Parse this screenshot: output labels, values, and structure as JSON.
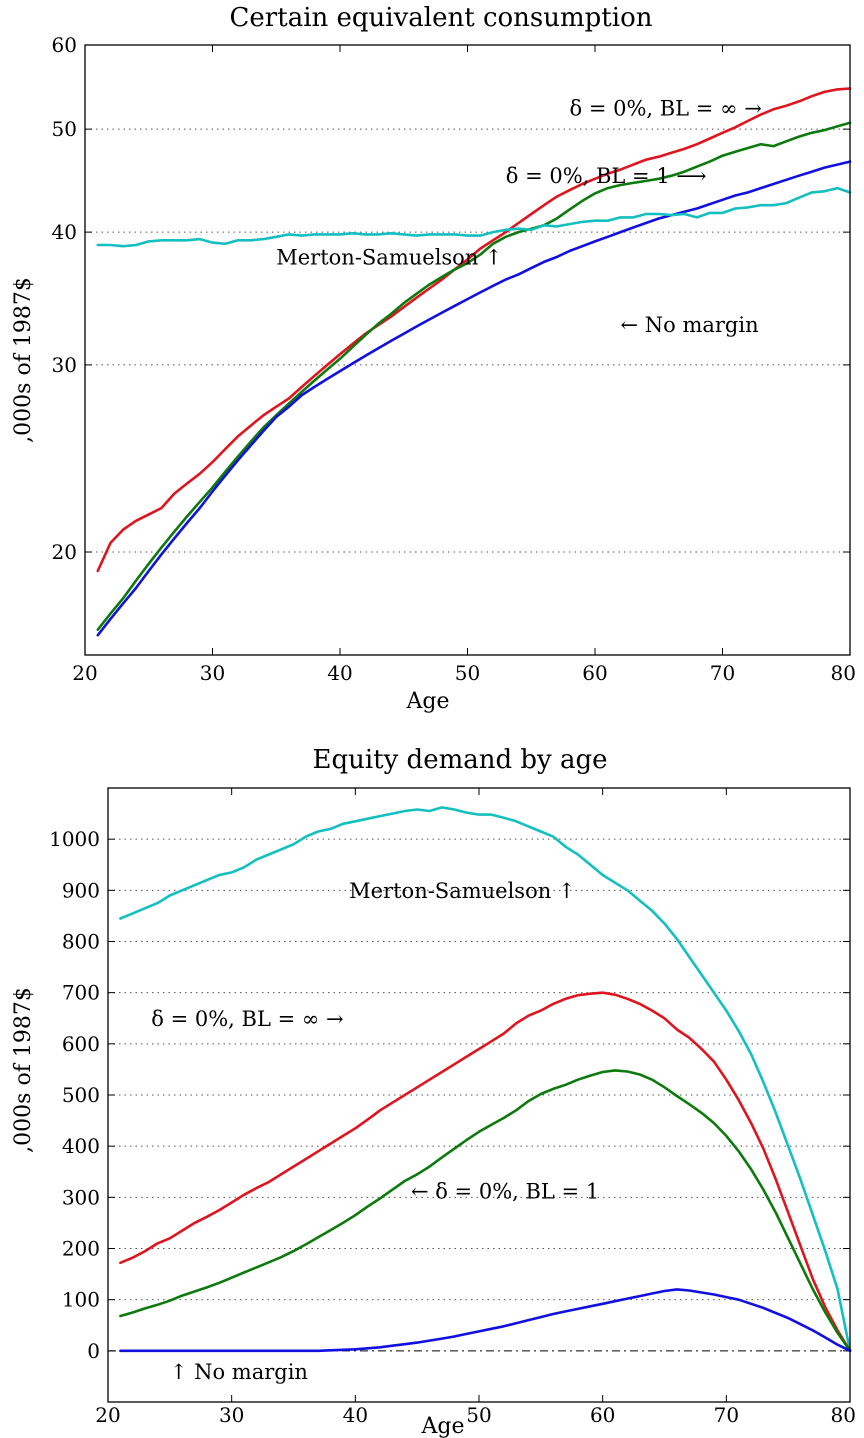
{
  "chart_data": [
    {
      "type": "line",
      "title": "Certain equivalent consumption",
      "xlabel": "Age",
      "ylabel": ",000s of 1987$",
      "xlim": [
        20,
        80
      ],
      "ylim": [
        16,
        60
      ],
      "yscale": "log",
      "xticks": [
        20,
        30,
        40,
        50,
        60,
        70,
        80
      ],
      "yticks": [
        20,
        30,
        40,
        50,
        60
      ],
      "grid_y": [
        20,
        30,
        40,
        50
      ],
      "annotations": [
        {
          "text": "δ = 0%, BL = ∞ →",
          "x": 58,
          "y": 51.5
        },
        {
          "text": "δ = 0%, BL = 1 ⟶",
          "x": 53,
          "y": 44.5
        },
        {
          "text": "Merton-Samuelson ↑",
          "x": 35,
          "y": 37.3
        },
        {
          "text": "← No margin",
          "x": 62,
          "y": 32.2
        }
      ],
      "series": [
        {
          "color": "#e0141e",
          "x": [
            21,
            22,
            23,
            24,
            25,
            26,
            27,
            28,
            29,
            30,
            31,
            32,
            33,
            34,
            35,
            36,
            37,
            38,
            39,
            40,
            41,
            42,
            43,
            44,
            45,
            46,
            47,
            48,
            49,
            50,
            51,
            52,
            53,
            54,
            55,
            56,
            57,
            58,
            59,
            60,
            61,
            62,
            63,
            64,
            65,
            66,
            67,
            68,
            69,
            70,
            71,
            72,
            73,
            74,
            75,
            76,
            77,
            78,
            79,
            80
          ],
          "values": [
            19.2,
            20.4,
            21.0,
            21.4,
            21.7,
            22.0,
            22.7,
            23.2,
            23.7,
            24.3,
            25.0,
            25.7,
            26.3,
            26.9,
            27.4,
            27.9,
            28.6,
            29.3,
            30.0,
            30.7,
            31.4,
            32.1,
            32.7,
            33.3,
            34.0,
            34.7,
            35.4,
            36.1,
            36.9,
            37.7,
            38.6,
            39.3,
            40.0,
            40.8,
            41.6,
            42.4,
            43.2,
            43.8,
            44.4,
            44.9,
            45.4,
            45.8,
            46.3,
            46.8,
            47.1,
            47.5,
            47.9,
            48.4,
            49.0,
            49.6,
            50.2,
            50.9,
            51.6,
            52.2,
            52.6,
            53.1,
            53.7,
            54.2,
            54.5,
            54.6
          ]
        },
        {
          "color": "#0d7a0d",
          "x": [
            21,
            22,
            23,
            24,
            25,
            26,
            27,
            28,
            29,
            30,
            31,
            32,
            33,
            34,
            35,
            36,
            37,
            38,
            39,
            40,
            41,
            42,
            43,
            44,
            45,
            46,
            47,
            48,
            49,
            50,
            51,
            52,
            53,
            54,
            55,
            56,
            57,
            58,
            59,
            60,
            61,
            62,
            63,
            64,
            65,
            66,
            67,
            68,
            69,
            70,
            71,
            72,
            73,
            74,
            75,
            76,
            77,
            78,
            79,
            80
          ],
          "values": [
            16.9,
            17.5,
            18.1,
            18.8,
            19.5,
            20.2,
            20.9,
            21.6,
            22.3,
            23.0,
            23.8,
            24.6,
            25.4,
            26.2,
            26.9,
            27.6,
            28.3,
            29.0,
            29.7,
            30.4,
            31.2,
            32.0,
            32.8,
            33.5,
            34.3,
            35.0,
            35.7,
            36.3,
            36.9,
            37.4,
            38.1,
            39.0,
            39.6,
            40.0,
            40.3,
            40.6,
            41.2,
            42.0,
            42.8,
            43.5,
            44.0,
            44.3,
            44.5,
            44.7,
            44.9,
            45.2,
            45.6,
            46.1,
            46.6,
            47.2,
            47.6,
            48.0,
            48.4,
            48.2,
            48.7,
            49.2,
            49.6,
            49.9,
            50.3,
            50.7
          ]
        },
        {
          "color": "#1010e0",
          "x": [
            21,
            22,
            23,
            24,
            25,
            26,
            27,
            28,
            29,
            30,
            31,
            32,
            33,
            34,
            35,
            36,
            37,
            38,
            39,
            40,
            41,
            42,
            43,
            44,
            45,
            46,
            47,
            48,
            49,
            50,
            51,
            52,
            53,
            54,
            55,
            56,
            57,
            58,
            59,
            60,
            61,
            62,
            63,
            64,
            65,
            66,
            67,
            68,
            69,
            70,
            71,
            72,
            73,
            74,
            75,
            76,
            77,
            78,
            79,
            80
          ],
          "values": [
            16.7,
            17.3,
            17.9,
            18.5,
            19.2,
            19.9,
            20.6,
            21.3,
            22.0,
            22.8,
            23.6,
            24.4,
            25.2,
            26.0,
            26.8,
            27.4,
            28.1,
            28.6,
            29.1,
            29.6,
            30.1,
            30.6,
            31.1,
            31.6,
            32.1,
            32.6,
            33.1,
            33.6,
            34.1,
            34.6,
            35.1,
            35.6,
            36.1,
            36.5,
            37.0,
            37.5,
            37.9,
            38.4,
            38.8,
            39.2,
            39.6,
            40.0,
            40.4,
            40.8,
            41.2,
            41.5,
            41.8,
            42.1,
            42.5,
            42.9,
            43.3,
            43.6,
            44.0,
            44.4,
            44.8,
            45.2,
            45.6,
            46.0,
            46.3,
            46.6
          ]
        },
        {
          "color": "#13bfbf",
          "x": [
            21,
            22,
            23,
            24,
            25,
            26,
            27,
            28,
            29,
            30,
            31,
            32,
            33,
            34,
            35,
            36,
            37,
            38,
            39,
            40,
            41,
            42,
            43,
            44,
            45,
            46,
            47,
            48,
            49,
            50,
            51,
            52,
            53,
            54,
            55,
            56,
            57,
            58,
            59,
            60,
            61,
            62,
            63,
            64,
            65,
            66,
            67,
            68,
            69,
            70,
            71,
            72,
            73,
            74,
            75,
            76,
            77,
            78,
            79,
            80
          ],
          "values": [
            38.9,
            38.9,
            38.8,
            38.9,
            39.2,
            39.3,
            39.3,
            39.3,
            39.4,
            39.1,
            39.0,
            39.3,
            39.3,
            39.4,
            39.6,
            39.8,
            39.7,
            39.8,
            39.8,
            39.8,
            39.9,
            39.8,
            39.8,
            39.9,
            39.8,
            39.7,
            39.8,
            39.8,
            39.8,
            39.7,
            39.7,
            40.0,
            40.2,
            40.3,
            40.2,
            40.6,
            40.5,
            40.7,
            40.9,
            41.0,
            41.0,
            41.3,
            41.3,
            41.6,
            41.6,
            41.5,
            41.6,
            41.3,
            41.7,
            41.7,
            42.1,
            42.2,
            42.4,
            42.4,
            42.6,
            43.1,
            43.6,
            43.7,
            44.0,
            43.6
          ]
        }
      ]
    },
    {
      "type": "line",
      "title": "Equity demand by age",
      "xlabel": "Age",
      "ylabel": ",000s of 1987$",
      "xlim": [
        20,
        80
      ],
      "ylim": [
        -100,
        1100
      ],
      "yscale": "linear",
      "xticks": [
        20,
        30,
        40,
        50,
        60,
        70,
        80
      ],
      "yticks": [
        0,
        100,
        200,
        300,
        400,
        500,
        600,
        700,
        800,
        900,
        1000
      ],
      "grid_y": [
        100,
        200,
        300,
        400,
        500,
        600,
        700,
        800,
        900,
        1000
      ],
      "zero_line": true,
      "annotations": [
        {
          "text": "Merton-Samuelson ↑",
          "x": 39.5,
          "y": 885
        },
        {
          "text": "δ = 0%, BL = ∞ →",
          "x": 23.5,
          "y": 635
        },
        {
          "text": "← δ = 0%, BL = 1",
          "x": 44.5,
          "y": 298
        },
        {
          "text": "↑ No margin",
          "x": 25,
          "y": -55
        }
      ],
      "series": [
        {
          "color": "#13bfbf",
          "x": [
            21,
            22,
            23,
            24,
            25,
            26,
            27,
            28,
            29,
            30,
            31,
            32,
            33,
            34,
            35,
            36,
            37,
            38,
            39,
            40,
            41,
            42,
            43,
            44,
            45,
            46,
            47,
            48,
            49,
            50,
            51,
            52,
            53,
            54,
            55,
            56,
            57,
            58,
            59,
            60,
            61,
            62,
            63,
            64,
            65,
            66,
            67,
            68,
            69,
            70,
            71,
            72,
            73,
            74,
            75,
            76,
            77,
            78,
            79,
            80
          ],
          "values": [
            845,
            855,
            865,
            875,
            890,
            900,
            910,
            920,
            930,
            935,
            945,
            960,
            970,
            980,
            990,
            1005,
            1015,
            1020,
            1030,
            1035,
            1040,
            1045,
            1050,
            1055,
            1058,
            1055,
            1062,
            1058,
            1052,
            1048,
            1048,
            1042,
            1035,
            1025,
            1015,
            1005,
            985,
            970,
            950,
            930,
            915,
            900,
            880,
            860,
            835,
            805,
            770,
            735,
            700,
            665,
            625,
            580,
            525,
            465,
            400,
            335,
            265,
            195,
            120,
            0
          ]
        },
        {
          "color": "#e0141e",
          "x": [
            21,
            22,
            23,
            24,
            25,
            26,
            27,
            28,
            29,
            30,
            31,
            32,
            33,
            34,
            35,
            36,
            37,
            38,
            39,
            40,
            41,
            42,
            43,
            44,
            45,
            46,
            47,
            48,
            49,
            50,
            51,
            52,
            53,
            54,
            55,
            56,
            57,
            58,
            59,
            60,
            61,
            62,
            63,
            64,
            65,
            66,
            67,
            68,
            69,
            70,
            71,
            72,
            73,
            74,
            75,
            76,
            77,
            78,
            79,
            80
          ],
          "values": [
            172,
            182,
            195,
            210,
            220,
            235,
            250,
            262,
            275,
            290,
            305,
            318,
            330,
            345,
            360,
            375,
            390,
            405,
            420,
            435,
            452,
            470,
            485,
            500,
            515,
            530,
            545,
            560,
            575,
            590,
            605,
            620,
            640,
            655,
            665,
            678,
            688,
            695,
            698,
            700,
            696,
            688,
            678,
            665,
            650,
            628,
            612,
            590,
            565,
            530,
            490,
            445,
            395,
            335,
            270,
            205,
            140,
            85,
            40,
            0
          ]
        },
        {
          "color": "#0d7a0d",
          "x": [
            21,
            22,
            23,
            24,
            25,
            26,
            27,
            28,
            29,
            30,
            31,
            32,
            33,
            34,
            35,
            36,
            37,
            38,
            39,
            40,
            41,
            42,
            43,
            44,
            45,
            46,
            47,
            48,
            49,
            50,
            51,
            52,
            53,
            54,
            55,
            56,
            57,
            58,
            59,
            60,
            61,
            62,
            63,
            64,
            65,
            66,
            67,
            68,
            69,
            70,
            71,
            72,
            73,
            74,
            75,
            76,
            77,
            78,
            79,
            80
          ],
          "values": [
            68,
            75,
            83,
            90,
            98,
            108,
            116,
            124,
            133,
            143,
            153,
            163,
            173,
            183,
            195,
            208,
            222,
            236,
            250,
            265,
            282,
            298,
            315,
            332,
            345,
            360,
            378,
            395,
            412,
            428,
            442,
            455,
            470,
            488,
            502,
            512,
            520,
            530,
            538,
            545,
            548,
            546,
            540,
            530,
            515,
            498,
            482,
            465,
            445,
            420,
            390,
            355,
            315,
            270,
            220,
            170,
            120,
            75,
            35,
            0
          ]
        },
        {
          "color": "#1010e0",
          "x": [
            21,
            22,
            23,
            24,
            25,
            26,
            27,
            28,
            29,
            30,
            31,
            32,
            33,
            34,
            35,
            36,
            37,
            38,
            39,
            40,
            41,
            42,
            43,
            44,
            45,
            46,
            47,
            48,
            49,
            50,
            51,
            52,
            53,
            54,
            55,
            56,
            57,
            58,
            59,
            60,
            61,
            62,
            63,
            64,
            65,
            66,
            67,
            68,
            69,
            70,
            71,
            72,
            73,
            74,
            75,
            76,
            77,
            78,
            79,
            80
          ],
          "values": [
            0,
            0,
            0,
            0,
            0,
            0,
            0,
            0,
            0,
            0,
            0,
            0,
            0,
            0,
            0,
            0,
            0,
            1,
            2,
            3,
            5,
            7,
            10,
            13,
            16,
            20,
            24,
            28,
            33,
            38,
            43,
            48,
            54,
            60,
            66,
            72,
            77,
            82,
            87,
            92,
            97,
            102,
            107,
            112,
            117,
            120,
            118,
            114,
            110,
            105,
            100,
            92,
            84,
            74,
            64,
            52,
            40,
            26,
            12,
            0
          ]
        }
      ]
    }
  ]
}
